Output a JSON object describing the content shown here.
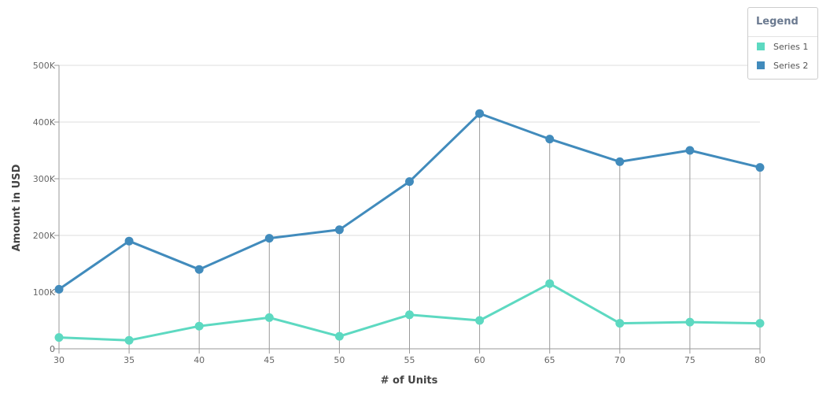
{
  "chart_data": {
    "type": "line",
    "x": [
      30,
      35,
      40,
      45,
      50,
      55,
      60,
      65,
      70,
      75,
      80
    ],
    "series": [
      {
        "name": "Series 1",
        "color": "#5dd9c1",
        "values": [
          20000,
          15000,
          40000,
          55000,
          22000,
          60000,
          50000,
          115000,
          45000,
          47000,
          45000
        ]
      },
      {
        "name": "Series 2",
        "color": "#418bbc",
        "values": [
          105000,
          190000,
          140000,
          195000,
          210000,
          295000,
          415000,
          370000,
          330000,
          350000,
          320000
        ]
      }
    ],
    "xlabel": "# of Units",
    "ylabel": "Amount in USD",
    "xlim": [
      30,
      80
    ],
    "ylim": [
      0,
      500000
    ],
    "yticks": [
      0,
      100000,
      200000,
      300000,
      400000,
      500000
    ],
    "ytick_labels": [
      "0",
      "100K",
      "200K",
      "300K",
      "400K",
      "500K"
    ],
    "xtick_labels": [
      "30",
      "35",
      "40",
      "45",
      "50",
      "55",
      "60",
      "65",
      "70",
      "75",
      "80"
    ],
    "grid": true,
    "drop_lines": true,
    "legend_position": "top-right"
  },
  "legend": {
    "title": "Legend",
    "items": [
      {
        "label": "Series 1",
        "color": "#5dd9c1"
      },
      {
        "label": "Series 2",
        "color": "#418bbc"
      }
    ]
  }
}
